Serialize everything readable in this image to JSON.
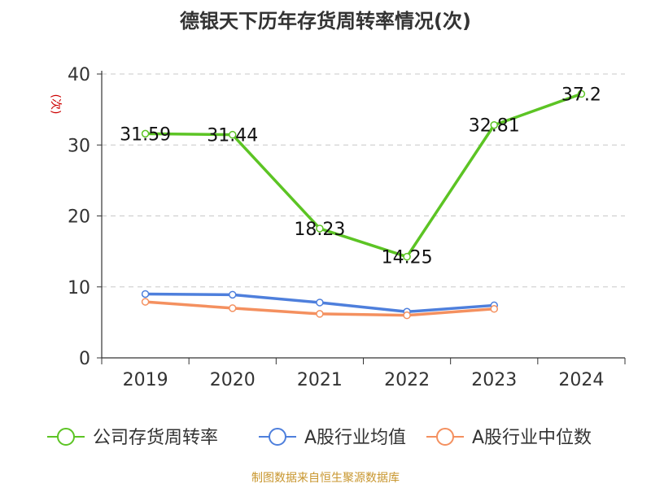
{
  "chart_data": {
    "type": "line",
    "title": "德银天下历年存货周转率情况(次)",
    "ylabel": "(次)",
    "categories": [
      "2019",
      "2020",
      "2021",
      "2022",
      "2023",
      "2024"
    ],
    "ylim": [
      0,
      40
    ],
    "yticks": [
      0,
      10,
      20,
      30,
      40
    ],
    "grid": true,
    "legend_position": "bottom",
    "series": [
      {
        "name": "公司存货周转率",
        "color": "#5cc424",
        "values": [
          31.59,
          31.44,
          18.23,
          14.25,
          32.81,
          37.2
        ],
        "labels": [
          "31.59",
          "31.44",
          "18.23",
          "14.25",
          "32.81",
          "37.2"
        ]
      },
      {
        "name": "A股行业均值",
        "color": "#4e7fdc",
        "values": [
          9.0,
          8.9,
          7.8,
          6.5,
          7.4,
          null
        ],
        "labels": []
      },
      {
        "name": "A股行业中位数",
        "color": "#f4905f",
        "values": [
          7.9,
          7.0,
          6.2,
          6.0,
          6.9,
          null
        ],
        "labels": []
      }
    ]
  },
  "source": "制图数据来自恒生聚源数据库"
}
